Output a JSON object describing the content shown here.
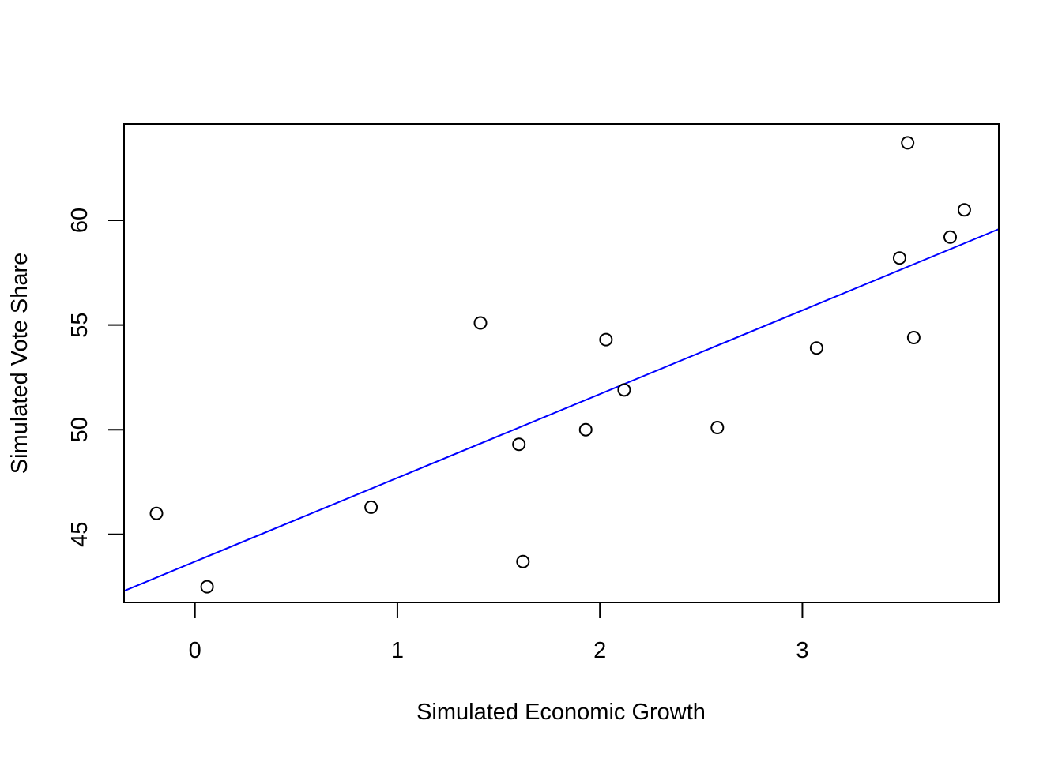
{
  "chart_data": {
    "type": "scatter",
    "title": "",
    "xlabel": "Simulated Economic Growth",
    "ylabel": "Simulated Vote Share",
    "xlim": [
      -0.35,
      3.97
    ],
    "ylim": [
      41.75,
      64.6
    ],
    "xticks": [
      0,
      1,
      2,
      3
    ],
    "yticks": [
      45,
      50,
      55,
      60
    ],
    "grid": false,
    "legend": "none",
    "points": {
      "x": [
        -0.19,
        0.06,
        0.87,
        1.41,
        1.6,
        1.62,
        1.93,
        2.03,
        2.12,
        2.58,
        3.07,
        3.48,
        3.52,
        3.55,
        3.73,
        3.8
      ],
      "y": [
        46.0,
        42.5,
        46.3,
        55.1,
        49.3,
        43.7,
        50.0,
        54.3,
        51.9,
        50.1,
        53.9,
        58.2,
        63.7,
        54.4,
        59.2,
        60.5
      ]
    },
    "fit_line": {
      "intercept": 43.7,
      "slope": 4.0,
      "color": "#0000ff"
    },
    "point_color": "#000000"
  }
}
